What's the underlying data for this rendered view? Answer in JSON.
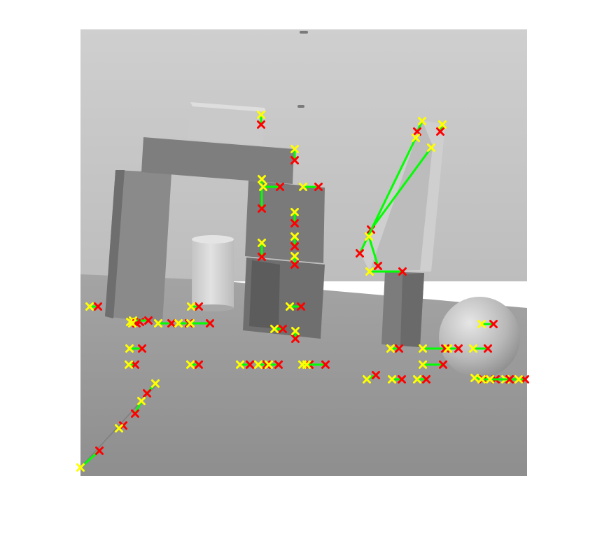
{
  "figure": {
    "kind": "grayscale photograph of toy blocks with overlaid correspondence markers",
    "scene_objects": [
      "block-arch",
      "top-slab",
      "small-box",
      "stacked-cubes",
      "cylinder",
      "leaning-wedge",
      "small-pillar",
      "sphere",
      "floor-crack"
    ],
    "colors": {
      "frame_background": "#ffffff",
      "wall": "#c8c8c8",
      "floor": "#9a9a9a",
      "match_line": "#00ff00",
      "marker_a": "#ffff00",
      "marker_b": "#ff0000"
    },
    "marker_glyph": "✖",
    "match_count": 62
  }
}
